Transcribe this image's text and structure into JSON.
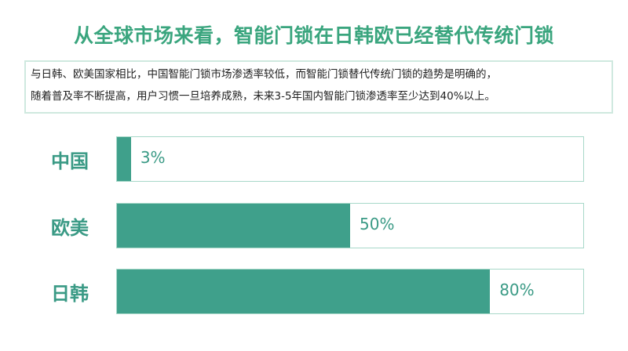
{
  "title": "从全球市场来看，智能门锁在日韩欧已经替代传统门锁",
  "description": [
    "与日韩、欧美国家相比，中国智能门锁市场渗透率较低，而智能门锁替代传统门锁的趋势是明确的，",
    "随着普及率不断提高，用户习惯一旦培养成熟，未来3-5年国内智能门锁渗透率至少达到40%以上。"
  ],
  "chart_data": {
    "type": "bar",
    "orientation": "horizontal",
    "categories": [
      "中国",
      "欧美",
      "日韩"
    ],
    "values": [
      3,
      50,
      80
    ],
    "data_labels": [
      "3%",
      "50%",
      "80%"
    ],
    "xlim": [
      0,
      100
    ],
    "title": "",
    "xlabel": "",
    "ylabel": "",
    "colors": {
      "bar": "#3fa08b",
      "track_border": "#a8d8c9",
      "title": "#3aa57e",
      "label": "#3a9a85"
    }
  }
}
